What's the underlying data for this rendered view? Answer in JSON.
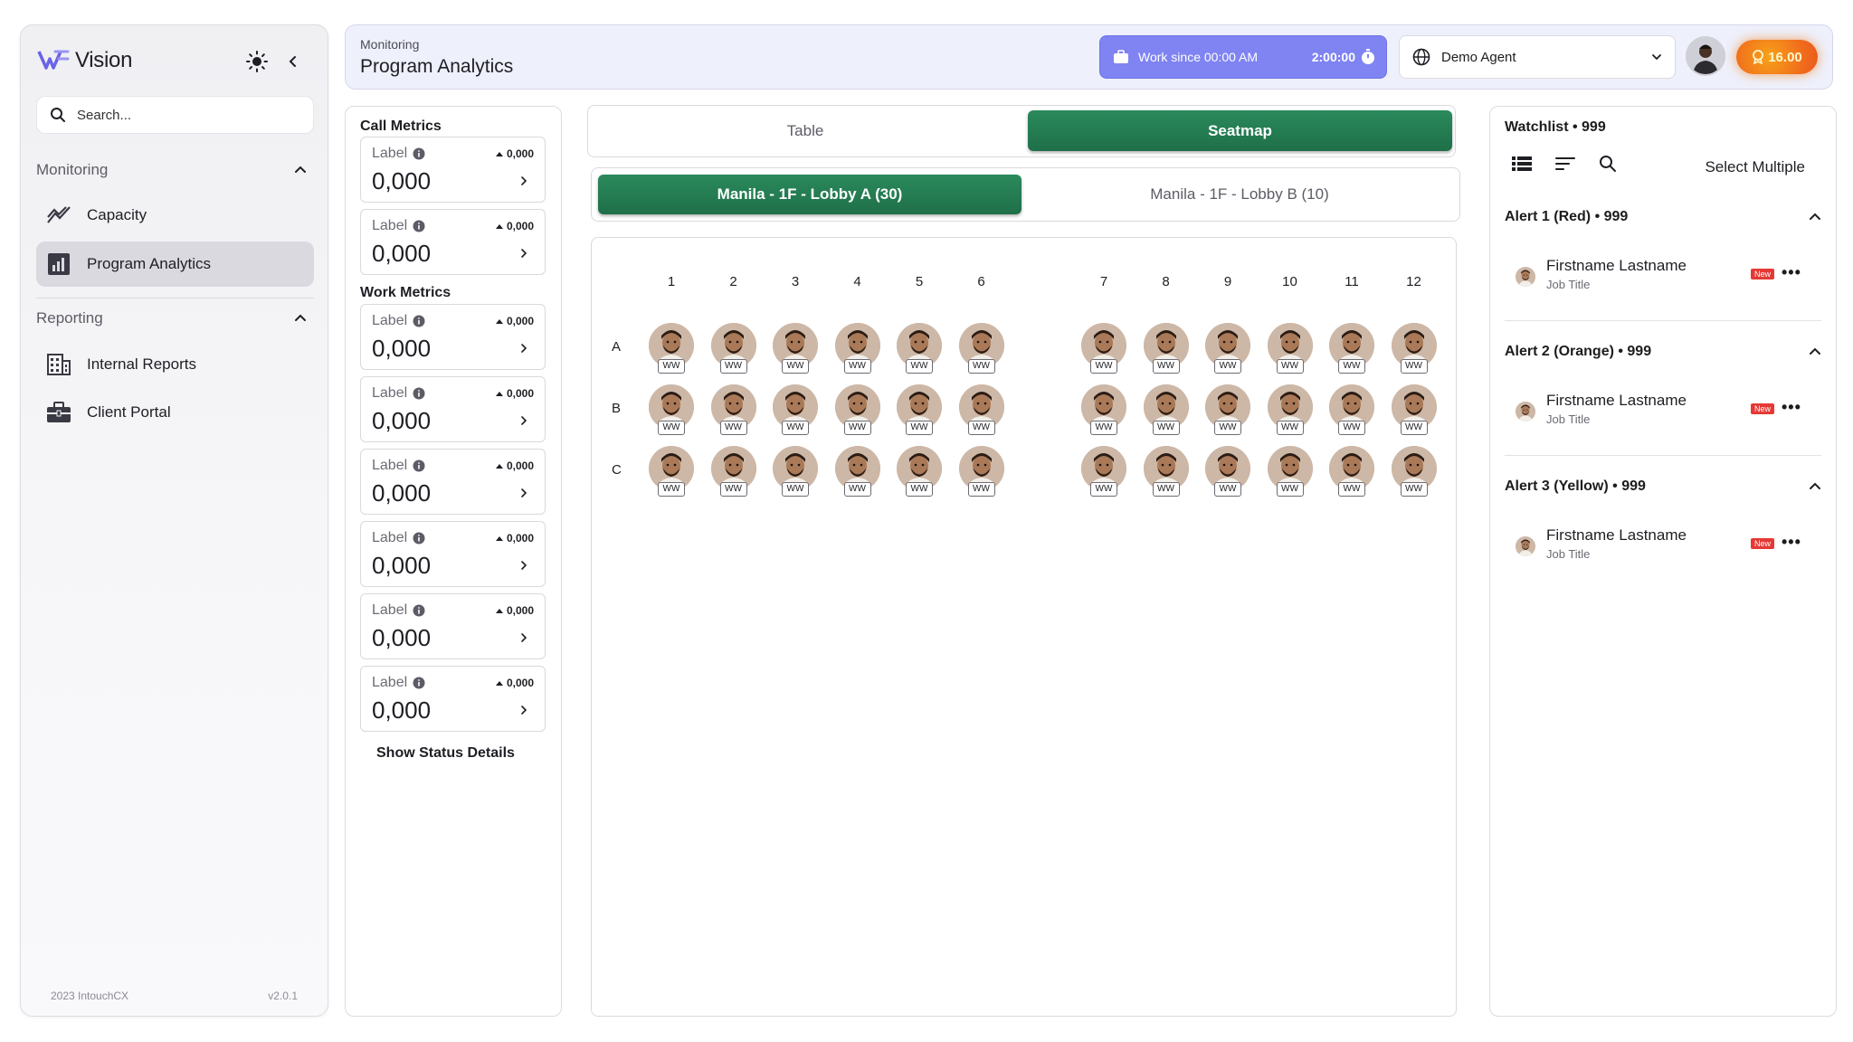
{
  "sidebar": {
    "brand": "Vision",
    "search_placeholder": "Search...",
    "sections": [
      {
        "label": "Monitoring",
        "items": [
          {
            "label": "Capacity",
            "icon": "trend-icon"
          },
          {
            "label": "Program Analytics",
            "icon": "bar-chart-icon",
            "active": true
          }
        ]
      },
      {
        "label": "Reporting",
        "items": [
          {
            "label": "Internal Reports",
            "icon": "building-icon"
          },
          {
            "label": "Client Portal",
            "icon": "briefcase-icon"
          }
        ]
      }
    ],
    "footer_left": "2023 IntouchCX",
    "footer_right": "v2.0.1"
  },
  "header": {
    "breadcrumb": "Monitoring",
    "title": "Program Analytics",
    "work_since": "Work since 00:00 AM",
    "work_timer": "2:00:00",
    "agent": "Demo Agent",
    "coins": "16.00",
    "accent": "#7f84f2"
  },
  "metrics": {
    "call_title": "Call Metrics",
    "work_title": "Work Metrics",
    "call_cards": [
      {
        "label": "Label",
        "delta": "0,000",
        "value": "0,000"
      },
      {
        "label": "Label",
        "delta": "0,000",
        "value": "0,000"
      }
    ],
    "work_cards": [
      {
        "label": "Label",
        "delta": "0,000",
        "value": "0,000"
      },
      {
        "label": "Label",
        "delta": "0,000",
        "value": "0,000"
      },
      {
        "label": "Label",
        "delta": "0,000",
        "value": "0,000"
      },
      {
        "label": "Label",
        "delta": "0,000",
        "value": "0,000"
      },
      {
        "label": "Label",
        "delta": "0,000",
        "value": "0,000"
      },
      {
        "label": "Label",
        "delta": "0,000",
        "value": "0,000"
      }
    ],
    "status_link": "Show Status Details"
  },
  "view_tabs": {
    "table": "Table",
    "seatmap": "Seatmap",
    "active": "Seatmap"
  },
  "location_tabs": {
    "a": "Manila - 1F - Lobby A (30)",
    "b": "Manila - 1F - Lobby B (10)",
    "active": "a"
  },
  "seatmap": {
    "columns": [
      "1",
      "2",
      "3",
      "4",
      "5",
      "6",
      "7",
      "8",
      "9",
      "10",
      "11",
      "12"
    ],
    "rows": [
      "A",
      "B",
      "C"
    ],
    "seat_tag": "WW",
    "brand_green": "#1f6f49"
  },
  "watchlist": {
    "title": "Watchlist • 999",
    "select_multiple": "Select Multiple",
    "alerts": [
      {
        "title": "Alert 1 (Red) • 999",
        "name": "Firstname Lastname",
        "job": "Job Title",
        "badge": "New"
      },
      {
        "title": "Alert 2 (Orange) • 999",
        "name": "Firstname Lastname",
        "job": "Job Title",
        "badge": "New"
      },
      {
        "title": "Alert 3 (Yellow) • 999",
        "name": "Firstname Lastname",
        "job": "Job Title",
        "badge": "New"
      }
    ]
  }
}
